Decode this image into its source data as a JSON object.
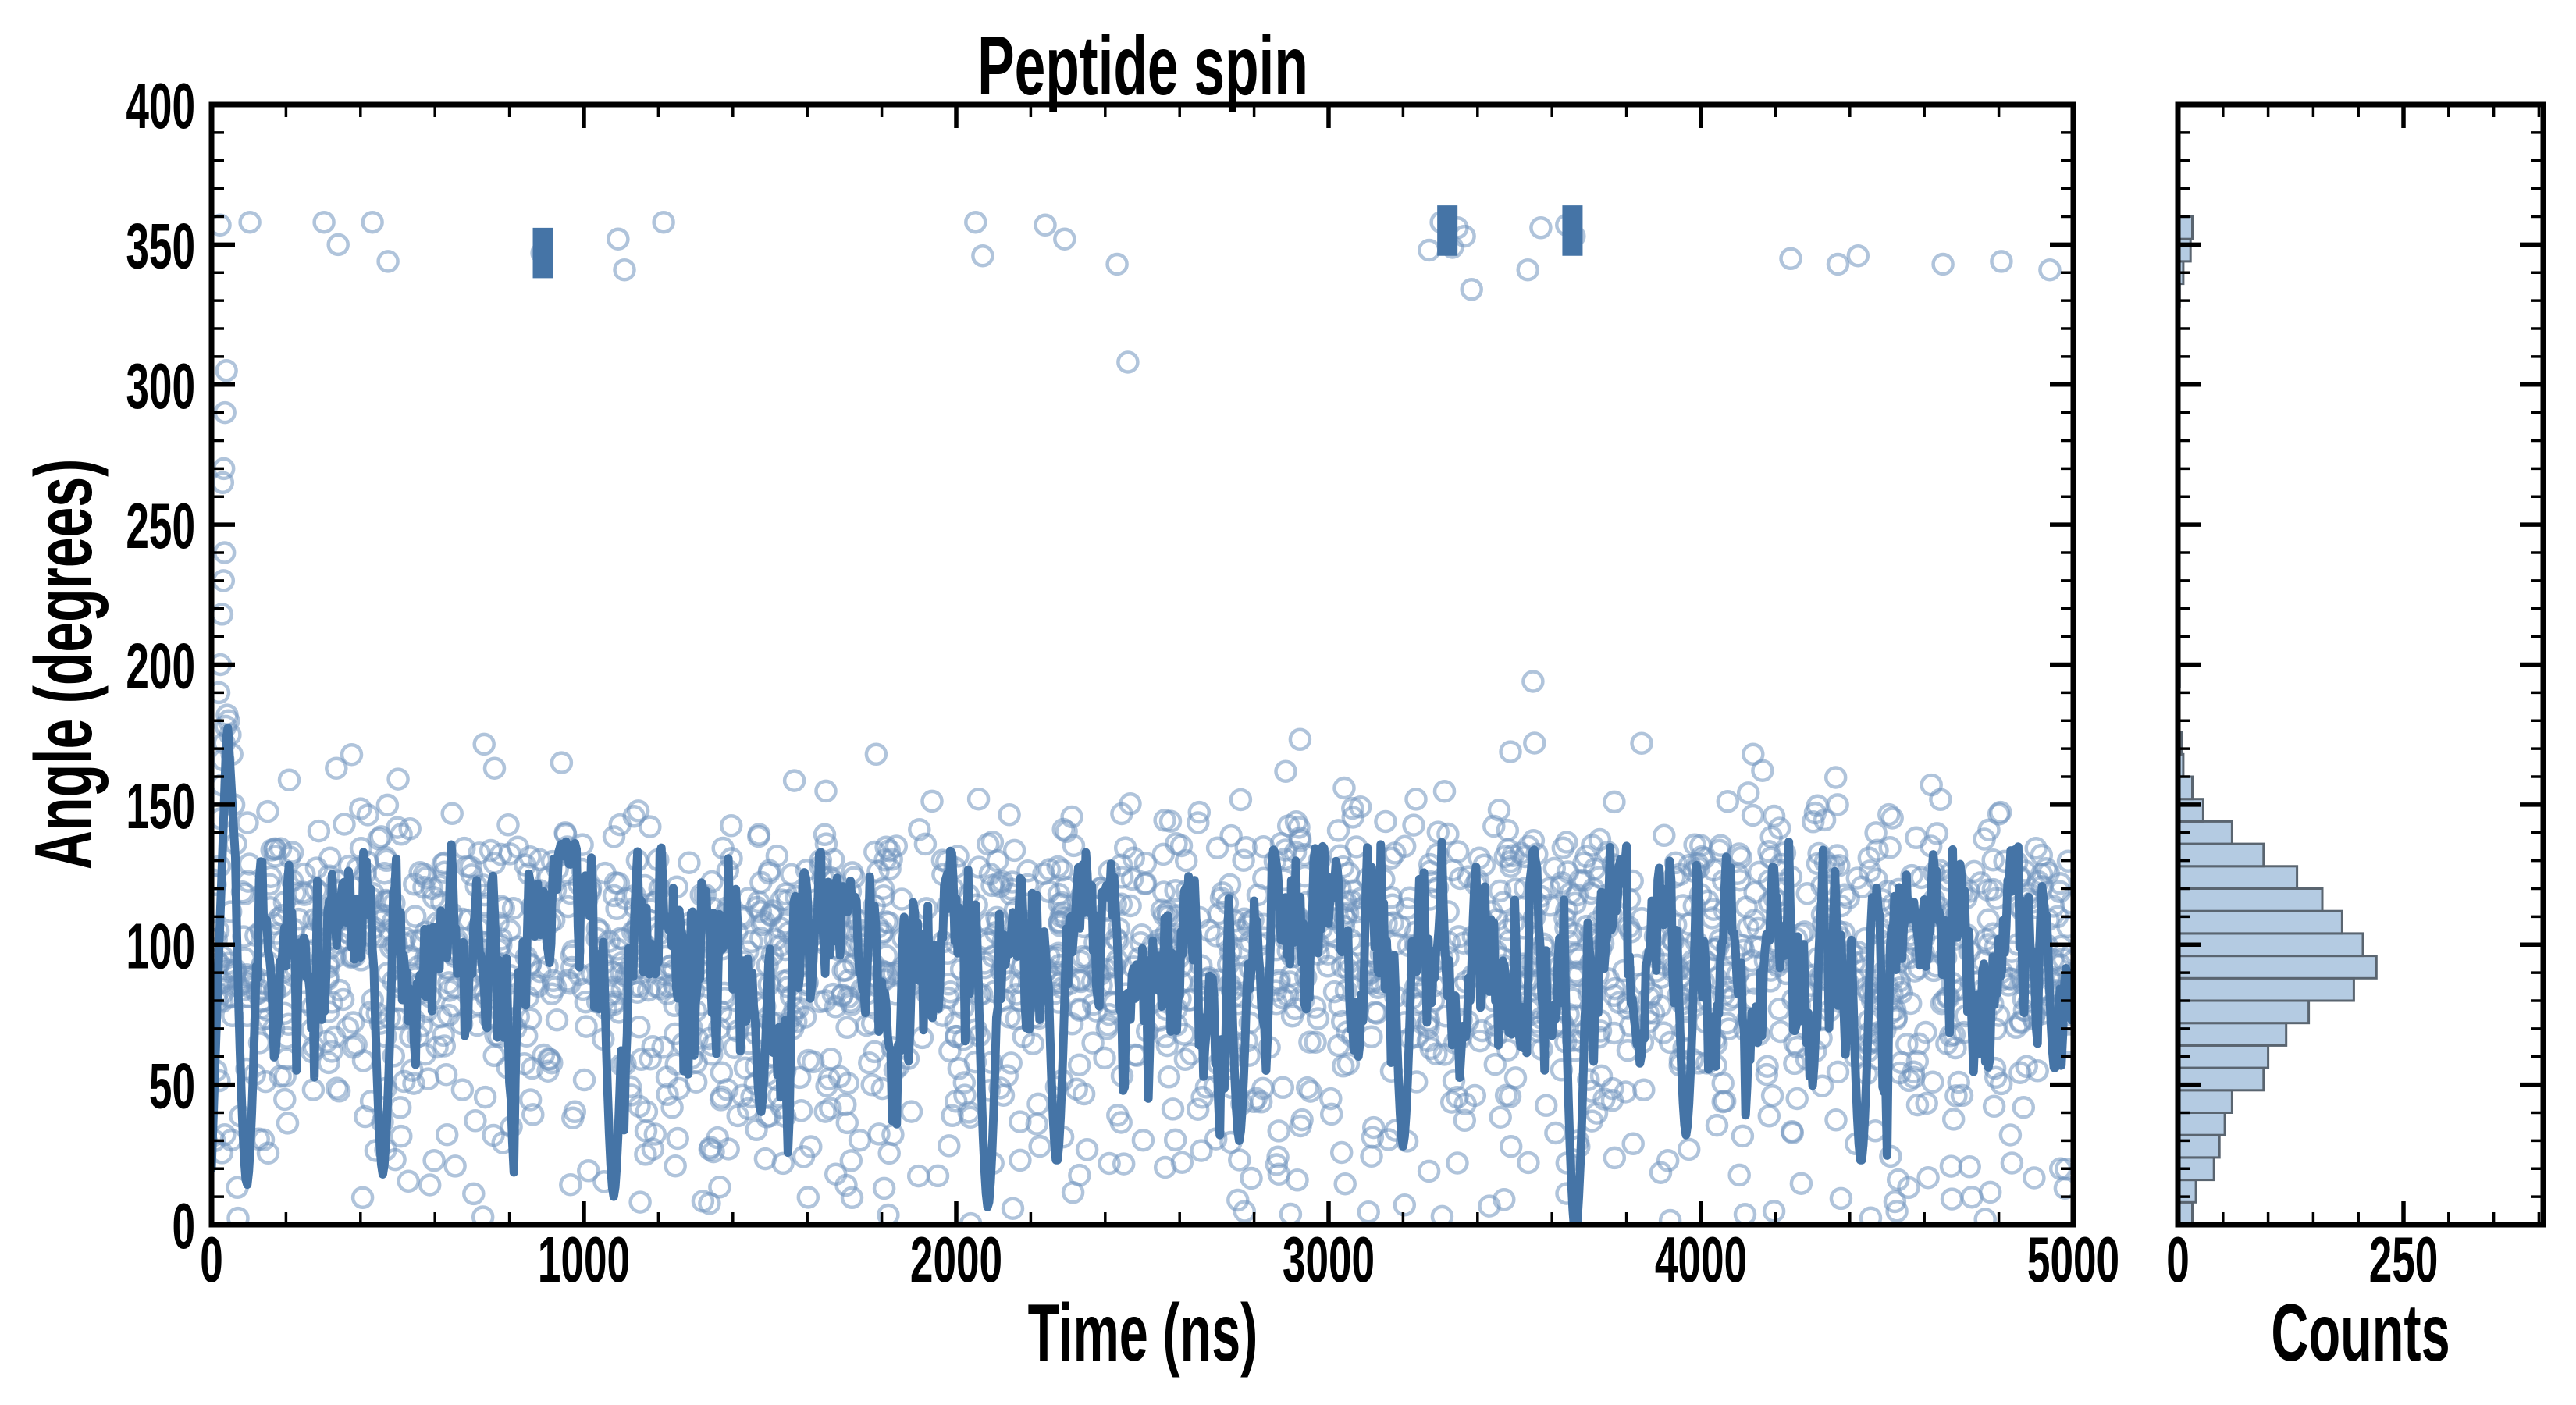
{
  "figure": {
    "title": "Peptide spin",
    "main_xlabel": "Time (ns)",
    "main_ylabel": "Angle (degrees)",
    "hist_xlabel": "Counts"
  },
  "style": {
    "background": "#ffffff",
    "axis_color": "#000000",
    "line_color": "#4574a6",
    "scatter_stroke": "#6f94bd",
    "scatter_opacity": 0.55,
    "hist_fill": "#aac4de",
    "hist_edge": "#5a6570"
  },
  "chart_data": [
    {
      "type": "scatter",
      "title": "Peptide spin",
      "xlabel": "Time (ns)",
      "ylabel": "Angle (degrees)",
      "xlim": [
        0,
        5000
      ],
      "ylim": [
        0,
        400
      ],
      "x_ticks": [
        0,
        1000,
        2000,
        3000,
        4000,
        5000
      ],
      "x_minor_step": 200,
      "y_ticks": [
        0,
        50,
        100,
        150,
        200,
        250,
        300,
        350,
        400
      ],
      "y_minor_step": 10,
      "grid": false,
      "legend": null,
      "series": [
        {
          "name": "angle samples",
          "marker": "open-circle",
          "approx_n": 2050,
          "x_sampling": "uniform 0-5000 ns",
          "y_distribution": "matches histogram counts in chart_data[1]"
        },
        {
          "name": "running average line",
          "style": "thick-line",
          "mean": 94,
          "typical_band": [
            40,
            135
          ],
          "start_transient": {
            "rise_from": 20,
            "peak": 182,
            "peak_t": 42,
            "settle_t": 74,
            "settle": 108
          },
          "deep_dips": [
            [
              95,
              14
            ],
            [
              460,
              18
            ],
            [
              1080,
              10
            ],
            [
              1475,
              40
            ],
            [
              2085,
              6
            ],
            [
              2270,
              22
            ],
            [
              2760,
              30
            ],
            [
              3200,
              28
            ],
            [
              3663,
              -4
            ],
            [
              3960,
              32
            ],
            [
              4430,
              22
            ],
            [
              4950,
              55
            ]
          ],
          "high_excursions": [
            [
              890,
              347
            ],
            [
              3319,
              355
            ],
            [
              3655,
              355
            ]
          ]
        }
      ],
      "outlier_points": [
        [
          23,
          357
        ],
        [
          103,
          358
        ],
        [
          302,
          358
        ],
        [
          340,
          350
        ],
        [
          432,
          358
        ],
        [
          474,
          344
        ],
        [
          887,
          347
        ],
        [
          1092,
          352
        ],
        [
          1109,
          341
        ],
        [
          1214,
          358
        ],
        [
          2052,
          358
        ],
        [
          2071,
          346
        ],
        [
          2239,
          357
        ],
        [
          2291,
          352
        ],
        [
          2432,
          343
        ],
        [
          3270,
          348
        ],
        [
          3302,
          358
        ],
        [
          3333,
          349
        ],
        [
          3346,
          356
        ],
        [
          3365,
          353
        ],
        [
          3384,
          334
        ],
        [
          3535,
          341
        ],
        [
          3570,
          356
        ],
        [
          3639,
          357
        ],
        [
          3660,
          353
        ],
        [
          4241,
          345
        ],
        [
          4368,
          343
        ],
        [
          4422,
          346
        ],
        [
          4650,
          343
        ],
        [
          4807,
          344
        ],
        [
          4937,
          341
        ],
        [
          2461,
          308
        ],
        [
          3549,
          194
        ],
        [
          3553,
          172
        ],
        [
          1785,
          168
        ],
        [
          940,
          165
        ],
        [
          760,
          163
        ],
        [
          2060,
          152
        ],
        [
          4140,
          168
        ],
        [
          335,
          163
        ]
      ],
      "start_transient_points": [
        [
          8,
          30
        ],
        [
          12,
          55
        ],
        [
          15,
          80
        ],
        [
          18,
          105
        ],
        [
          22,
          128
        ],
        [
          25,
          145
        ],
        [
          28,
          157
        ],
        [
          31,
          166
        ],
        [
          34,
          172
        ],
        [
          38,
          178
        ],
        [
          42,
          182
        ],
        [
          46,
          180
        ],
        [
          50,
          175
        ],
        [
          55,
          168
        ],
        [
          60,
          150
        ],
        [
          65,
          136
        ],
        [
          20,
          190
        ],
        [
          24,
          200
        ],
        [
          28,
          218
        ],
        [
          32,
          230
        ],
        [
          35,
          240
        ],
        [
          30,
          265
        ],
        [
          33,
          270
        ],
        [
          36,
          290
        ],
        [
          40,
          305
        ]
      ]
    },
    {
      "type": "bar",
      "orientation": "horizontal",
      "xlabel": "Counts",
      "shared_y_axis": "Angle (degrees) 0-400",
      "xlim": [
        0,
        405
      ],
      "x_ticks": [
        0,
        250
      ],
      "x_minor_step": 50,
      "bin_start": 0,
      "bin_width": 8,
      "counts": [
        16,
        20,
        40,
        46,
        52,
        60,
        95,
        100,
        120,
        145,
        195,
        220,
        205,
        182,
        160,
        132,
        95,
        60,
        28,
        16,
        6,
        4,
        1,
        0,
        2,
        0,
        0,
        0,
        0,
        1,
        0,
        0,
        1,
        1,
        0,
        1,
        1,
        1,
        1,
        0,
        0,
        2,
        6,
        14,
        16
      ]
    }
  ]
}
